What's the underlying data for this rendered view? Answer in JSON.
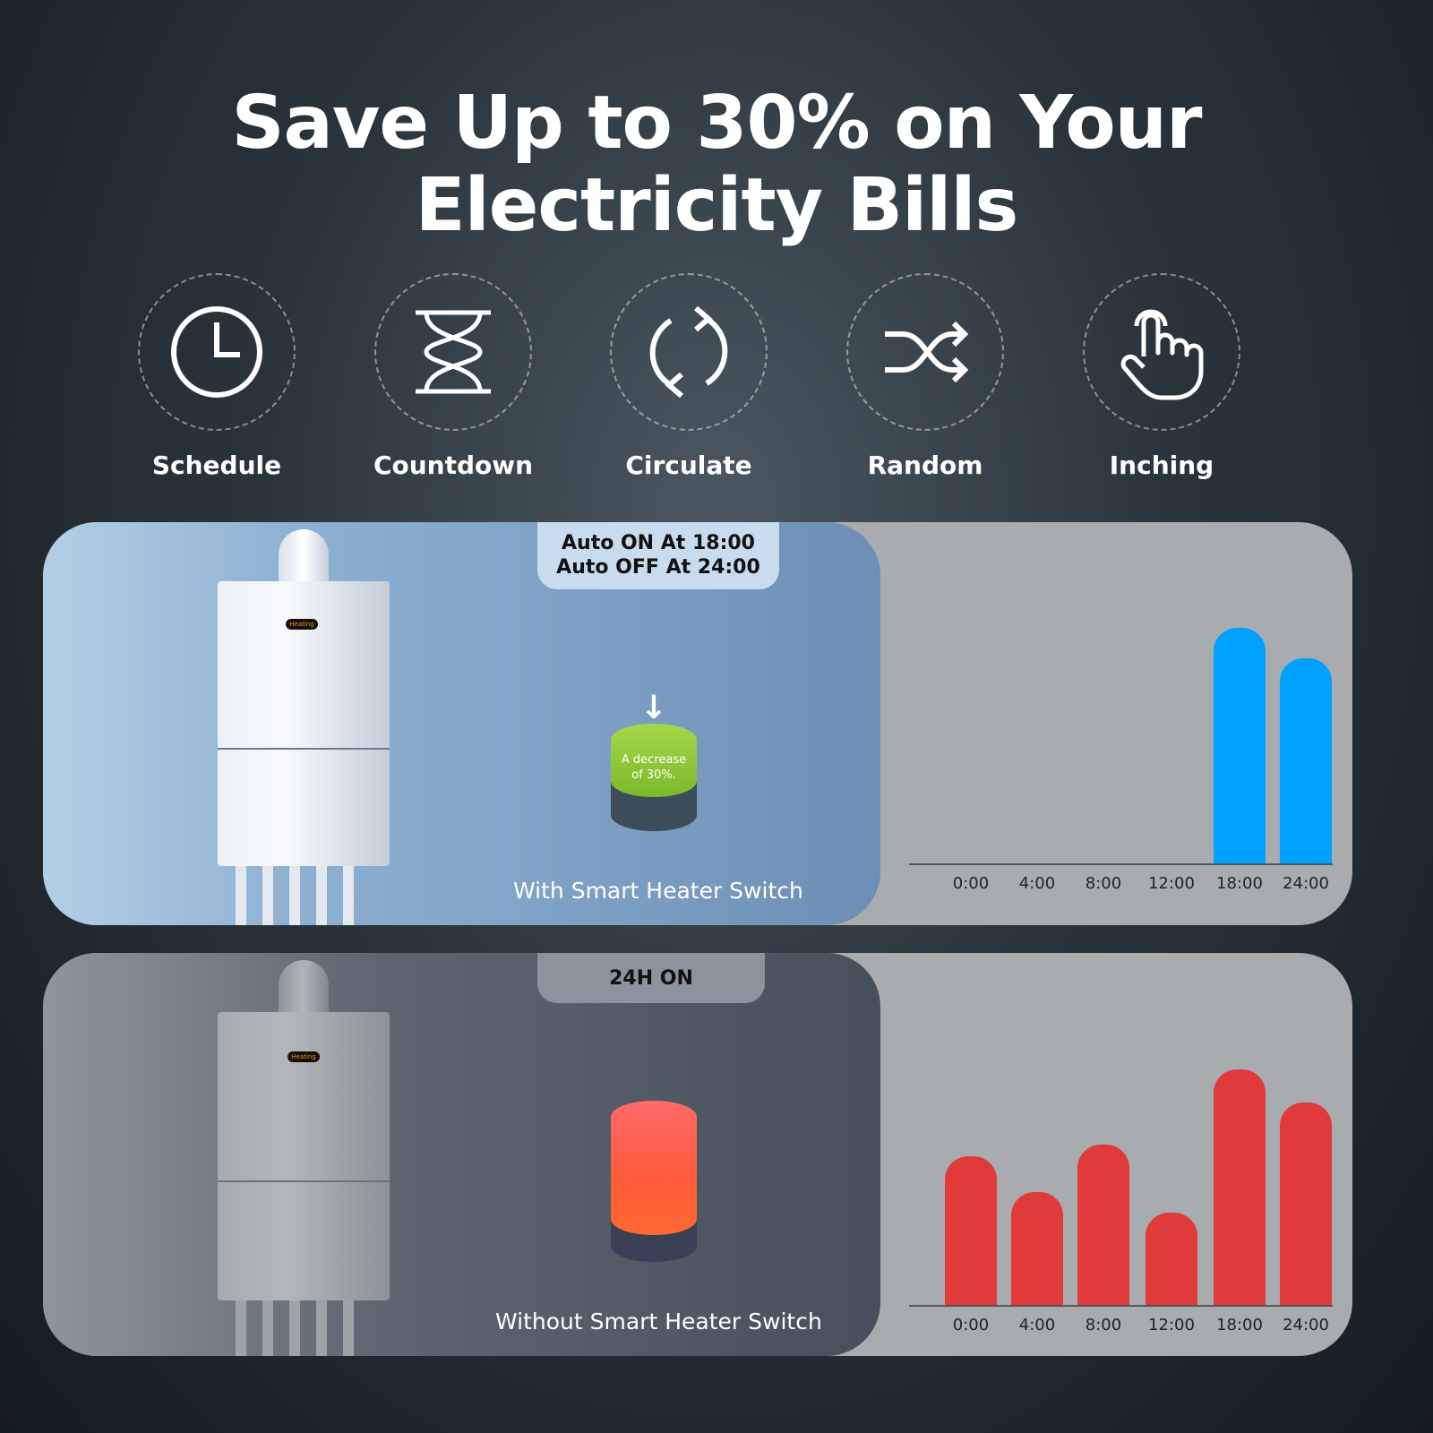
{
  "title": {
    "line1": "Save Up to 30% on Your",
    "line2": "Electricity Bills"
  },
  "features": [
    {
      "label": "Schedule",
      "icon": "clock-icon"
    },
    {
      "label": "Countdown",
      "icon": "hourglass-icon"
    },
    {
      "label": "Circulate",
      "icon": "refresh-icon"
    },
    {
      "label": "Random",
      "icon": "shuffle-icon"
    },
    {
      "label": "Inching",
      "icon": "hand-pointer-icon"
    }
  ],
  "with_switch": {
    "tag_line1": "Auto ON At 18:00",
    "tag_line2": "Auto OFF At 24:00",
    "caption": "With Smart Heater Switch",
    "heater_display": "Heating",
    "cylinder_text_line1": "A decrease",
    "cylinder_text_line2": "of 30%.",
    "cylinder_color": "#8cc43a"
  },
  "without_switch": {
    "tag": "24H ON",
    "caption": "Without Smart Heater Switch",
    "heater_display": "Heating",
    "cylinder_color": "#ff5a4a"
  },
  "chart_data": [
    {
      "type": "bar",
      "categories": [
        "0:00",
        "4:00",
        "8:00",
        "12:00",
        "18:00",
        "24:00"
      ],
      "values": [
        0,
        0,
        0,
        0,
        100,
        87
      ],
      "color": "#00a2ff",
      "xlabel": "",
      "ylabel": ""
    },
    {
      "type": "bar",
      "categories": [
        "0:00",
        "4:00",
        "8:00",
        "12:00",
        "18:00",
        "24:00"
      ],
      "values": [
        63,
        48,
        68,
        39,
        100,
        86
      ],
      "color": "#e03a3a",
      "xlabel": "",
      "ylabel": ""
    }
  ]
}
